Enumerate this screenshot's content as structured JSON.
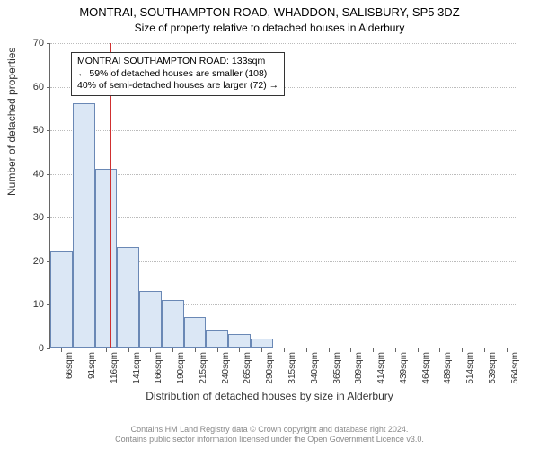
{
  "title_main": "MONTRAI, SOUTHAMPTON ROAD, WHADDON, SALISBURY, SP5 3DZ",
  "title_sub": "Size of property relative to detached houses in Alderbury",
  "y_axis_label": "Number of detached properties",
  "x_axis_label": "Distribution of detached houses by size in Alderbury",
  "chart": {
    "type": "histogram",
    "ylim": [
      0,
      70
    ],
    "ytick_step": 10,
    "bar_fill": "#dbe7f5",
    "bar_border": "#6a88b5",
    "grid_color": "#bbbbbb",
    "axis_color": "#666666",
    "background": "#ffffff",
    "ref_line_color": "#d03030",
    "ref_line_x_offset": 66,
    "categories": [
      "66sqm",
      "91sqm",
      "116sqm",
      "141sqm",
      "166sqm",
      "190sqm",
      "215sqm",
      "240sqm",
      "265sqm",
      "290sqm",
      "315sqm",
      "340sqm",
      "365sqm",
      "389sqm",
      "414sqm",
      "439sqm",
      "464sqm",
      "489sqm",
      "514sqm",
      "539sqm",
      "564sqm"
    ],
    "values": [
      22,
      56,
      41,
      23,
      13,
      11,
      7,
      4,
      3,
      2,
      0,
      0,
      0,
      0,
      0,
      0,
      0,
      0,
      0,
      0,
      0
    ]
  },
  "callout": {
    "line1": "MONTRAI SOUTHAMPTON ROAD: 133sqm",
    "line2": "← 59% of detached houses are smaller (108)",
    "line3": "40% of semi-detached houses are larger (72) →"
  },
  "footer": {
    "line1": "Contains HM Land Registry data © Crown copyright and database right 2024.",
    "line2": "Contains public sector information licensed under the Open Government Licence v3.0."
  }
}
